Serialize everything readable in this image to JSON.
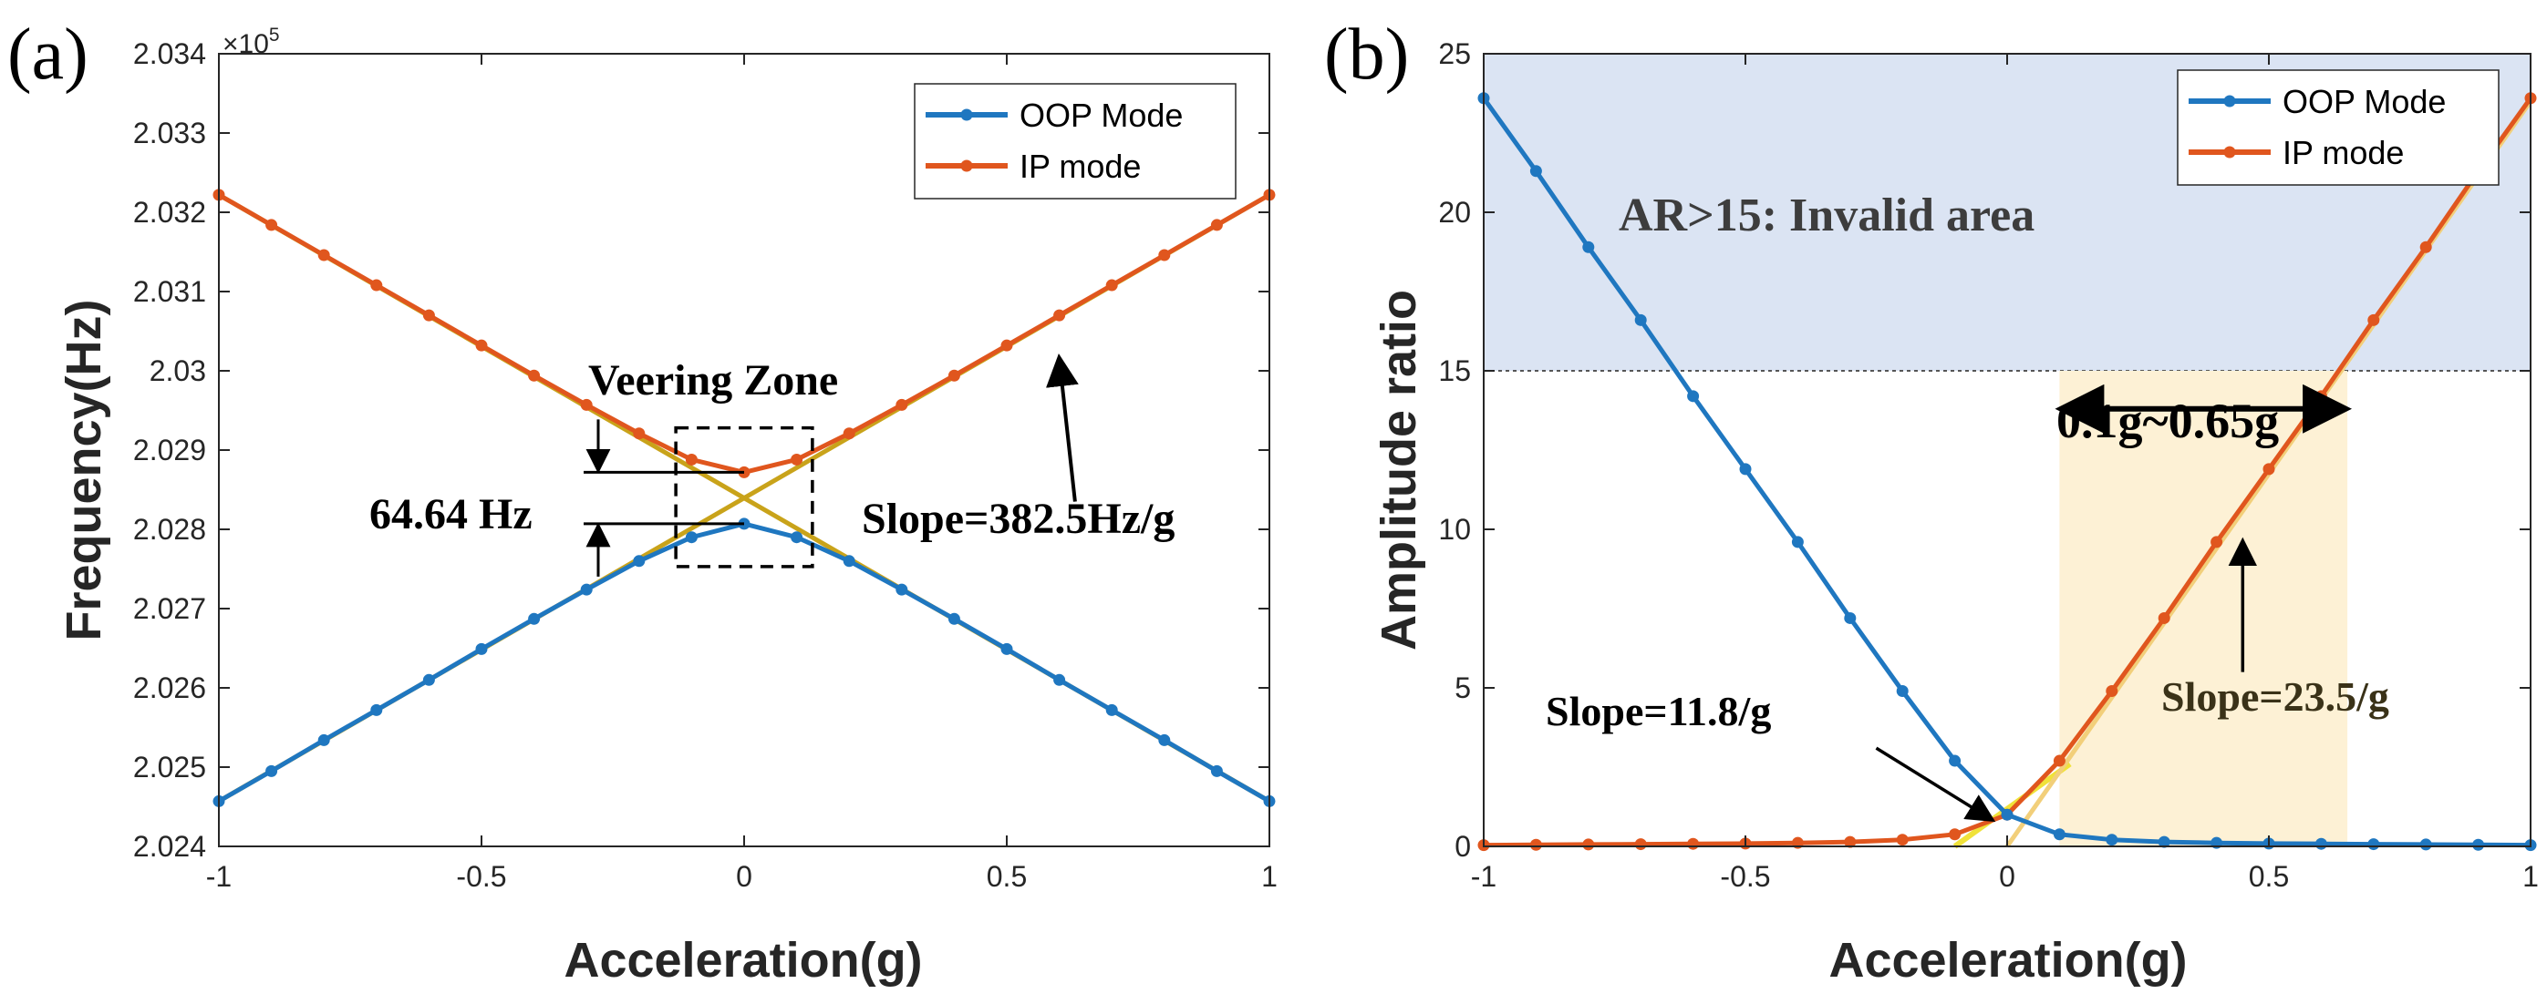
{
  "figure": {
    "background": "#ffffff"
  },
  "colors": {
    "oop": "#1f77c0",
    "ip": "#e0561e",
    "fit": "#c9a31a",
    "fit_yellow": "#f0e23a",
    "fit_b": "#f2cf7a",
    "invalid_fill": "#dbe4f3",
    "range_fill": "#fdf1d5"
  },
  "chart_data": [
    {
      "type": "line",
      "panel_label": "(a)",
      "xlabel": "Acceleration(g)",
      "ylabel": "Frequency(Hz)",
      "y_multiplier": "×10",
      "y_multiplier_exp": "5",
      "xlim": [
        -1,
        1
      ],
      "ylim": [
        2.024,
        2.034
      ],
      "xticks": [
        -1,
        -0.5,
        0,
        0.5,
        1
      ],
      "xtick_labels": [
        "-1",
        "-0.5",
        "0",
        "0.5",
        "1"
      ],
      "yticks": [
        2.024,
        2.025,
        2.026,
        2.027,
        2.028,
        2.029,
        2.03,
        2.031,
        2.032,
        2.033,
        2.034
      ],
      "ytick_labels": [
        "2.024",
        "2.025",
        "2.026",
        "2.027",
        "2.028",
        "2.029",
        "2.03",
        "2.031",
        "2.032",
        "2.033",
        "2.034"
      ],
      "legend": {
        "position": "top-right",
        "entries": [
          "OOP Mode",
          "IP mode"
        ]
      },
      "x": [
        -1,
        -0.9,
        -0.8,
        -0.7,
        -0.6,
        -0.5,
        -0.4,
        -0.3,
        -0.2,
        -0.1,
        0,
        0.1,
        0.2,
        0.3,
        0.4,
        0.5,
        0.6,
        0.7,
        0.8,
        0.9,
        1
      ],
      "series": [
        {
          "name": "OOP Mode",
          "values": [
            2.02457,
            2.02495,
            2.02534,
            2.02572,
            2.0261,
            2.02649,
            2.02687,
            2.02724,
            2.0276,
            2.0279,
            2.02807,
            2.0279,
            2.0276,
            2.02724,
            2.02687,
            2.02649,
            2.0261,
            2.02572,
            2.02534,
            2.02495,
            2.02457
          ]
        },
        {
          "name": "IP mode",
          "values": [
            2.03222,
            2.03184,
            2.03146,
            2.03108,
            2.0307,
            2.03032,
            2.02994,
            2.02957,
            2.02921,
            2.02888,
            2.02872,
            2.02888,
            2.02921,
            2.02957,
            2.02994,
            2.03032,
            2.0307,
            2.03108,
            2.03146,
            2.03184,
            2.03222
          ]
        }
      ],
      "fit_lines": [
        {
          "x": [
            -1,
            1
          ],
          "y": [
            2.02457,
            2.03222
          ]
        },
        {
          "x": [
            -1,
            1
          ],
          "y": [
            2.03222,
            2.02457
          ]
        }
      ],
      "annotations": {
        "veering_zone": "Veering Zone",
        "gap_label": "64.64 Hz",
        "slope_label": "Slope=382.5Hz/g"
      },
      "veering_box": {
        "x": [
          -0.13,
          0.13
        ],
        "y": [
          2.02753,
          2.02928
        ]
      },
      "gap_levels": [
        2.02872,
        2.02807
      ],
      "slope_arrow": {
        "from": [
          0.63,
          2.02835
        ],
        "to": [
          0.6,
          2.03015
        ]
      }
    },
    {
      "type": "line",
      "panel_label": "(b)",
      "xlabel": "Acceleration(g)",
      "ylabel": "Amplitude ratio",
      "xlim": [
        -1,
        1
      ],
      "ylim": [
        0,
        25
      ],
      "xticks": [
        -1,
        -0.5,
        0,
        0.5,
        1
      ],
      "xtick_labels": [
        "-1",
        "-0.5",
        "0",
        "0.5",
        "1"
      ],
      "yticks": [
        0,
        5,
        10,
        15,
        20,
        25
      ],
      "ytick_labels": [
        "0",
        "5",
        "10",
        "15",
        "20",
        "25"
      ],
      "legend": {
        "position": "top-right",
        "entries": [
          "OOP Mode",
          "IP mode"
        ]
      },
      "x": [
        -1,
        -0.9,
        -0.8,
        -0.7,
        -0.6,
        -0.5,
        -0.4,
        -0.3,
        -0.2,
        -0.1,
        0,
        0.1,
        0.2,
        0.3,
        0.4,
        0.5,
        0.6,
        0.7,
        0.8,
        0.9,
        1
      ],
      "series": [
        {
          "name": "OOP Mode",
          "values": [
            23.6,
            21.3,
            18.9,
            16.6,
            14.2,
            11.9,
            9.6,
            7.2,
            4.9,
            2.7,
            1.0,
            0.38,
            0.21,
            0.14,
            0.11,
            0.09,
            0.08,
            0.07,
            0.06,
            0.05,
            0.04
          ]
        },
        {
          "name": "IP mode",
          "values": [
            0.04,
            0.05,
            0.06,
            0.07,
            0.08,
            0.09,
            0.11,
            0.14,
            0.21,
            0.38,
            1.0,
            2.7,
            4.9,
            7.2,
            9.6,
            11.9,
            14.2,
            16.6,
            18.9,
            21.3,
            23.6
          ]
        }
      ],
      "fit_lines": [
        {
          "name": "slope-11.8",
          "x": [
            -0.1,
            0.12
          ],
          "y": [
            0.0,
            2.6
          ]
        },
        {
          "name": "slope-23.5",
          "x": [
            0.0,
            1.0
          ],
          "y": [
            0.0,
            23.5
          ]
        }
      ],
      "invalid_threshold": 15,
      "range": [
        0.1,
        0.65
      ],
      "annotations": {
        "invalid_area": "AR>15: Invalid area",
        "range_label": "0.1g~0.65g",
        "slope1_label": "Slope=11.8/g",
        "slope2_label": "Slope=23.5/g"
      },
      "slope1_arrow": {
        "from": [
          -0.25,
          3.1
        ],
        "to": [
          -0.03,
          0.85
        ]
      },
      "slope2_arrow": {
        "from": [
          0.45,
          5.5
        ],
        "to": [
          0.45,
          9.6
        ]
      }
    }
  ]
}
